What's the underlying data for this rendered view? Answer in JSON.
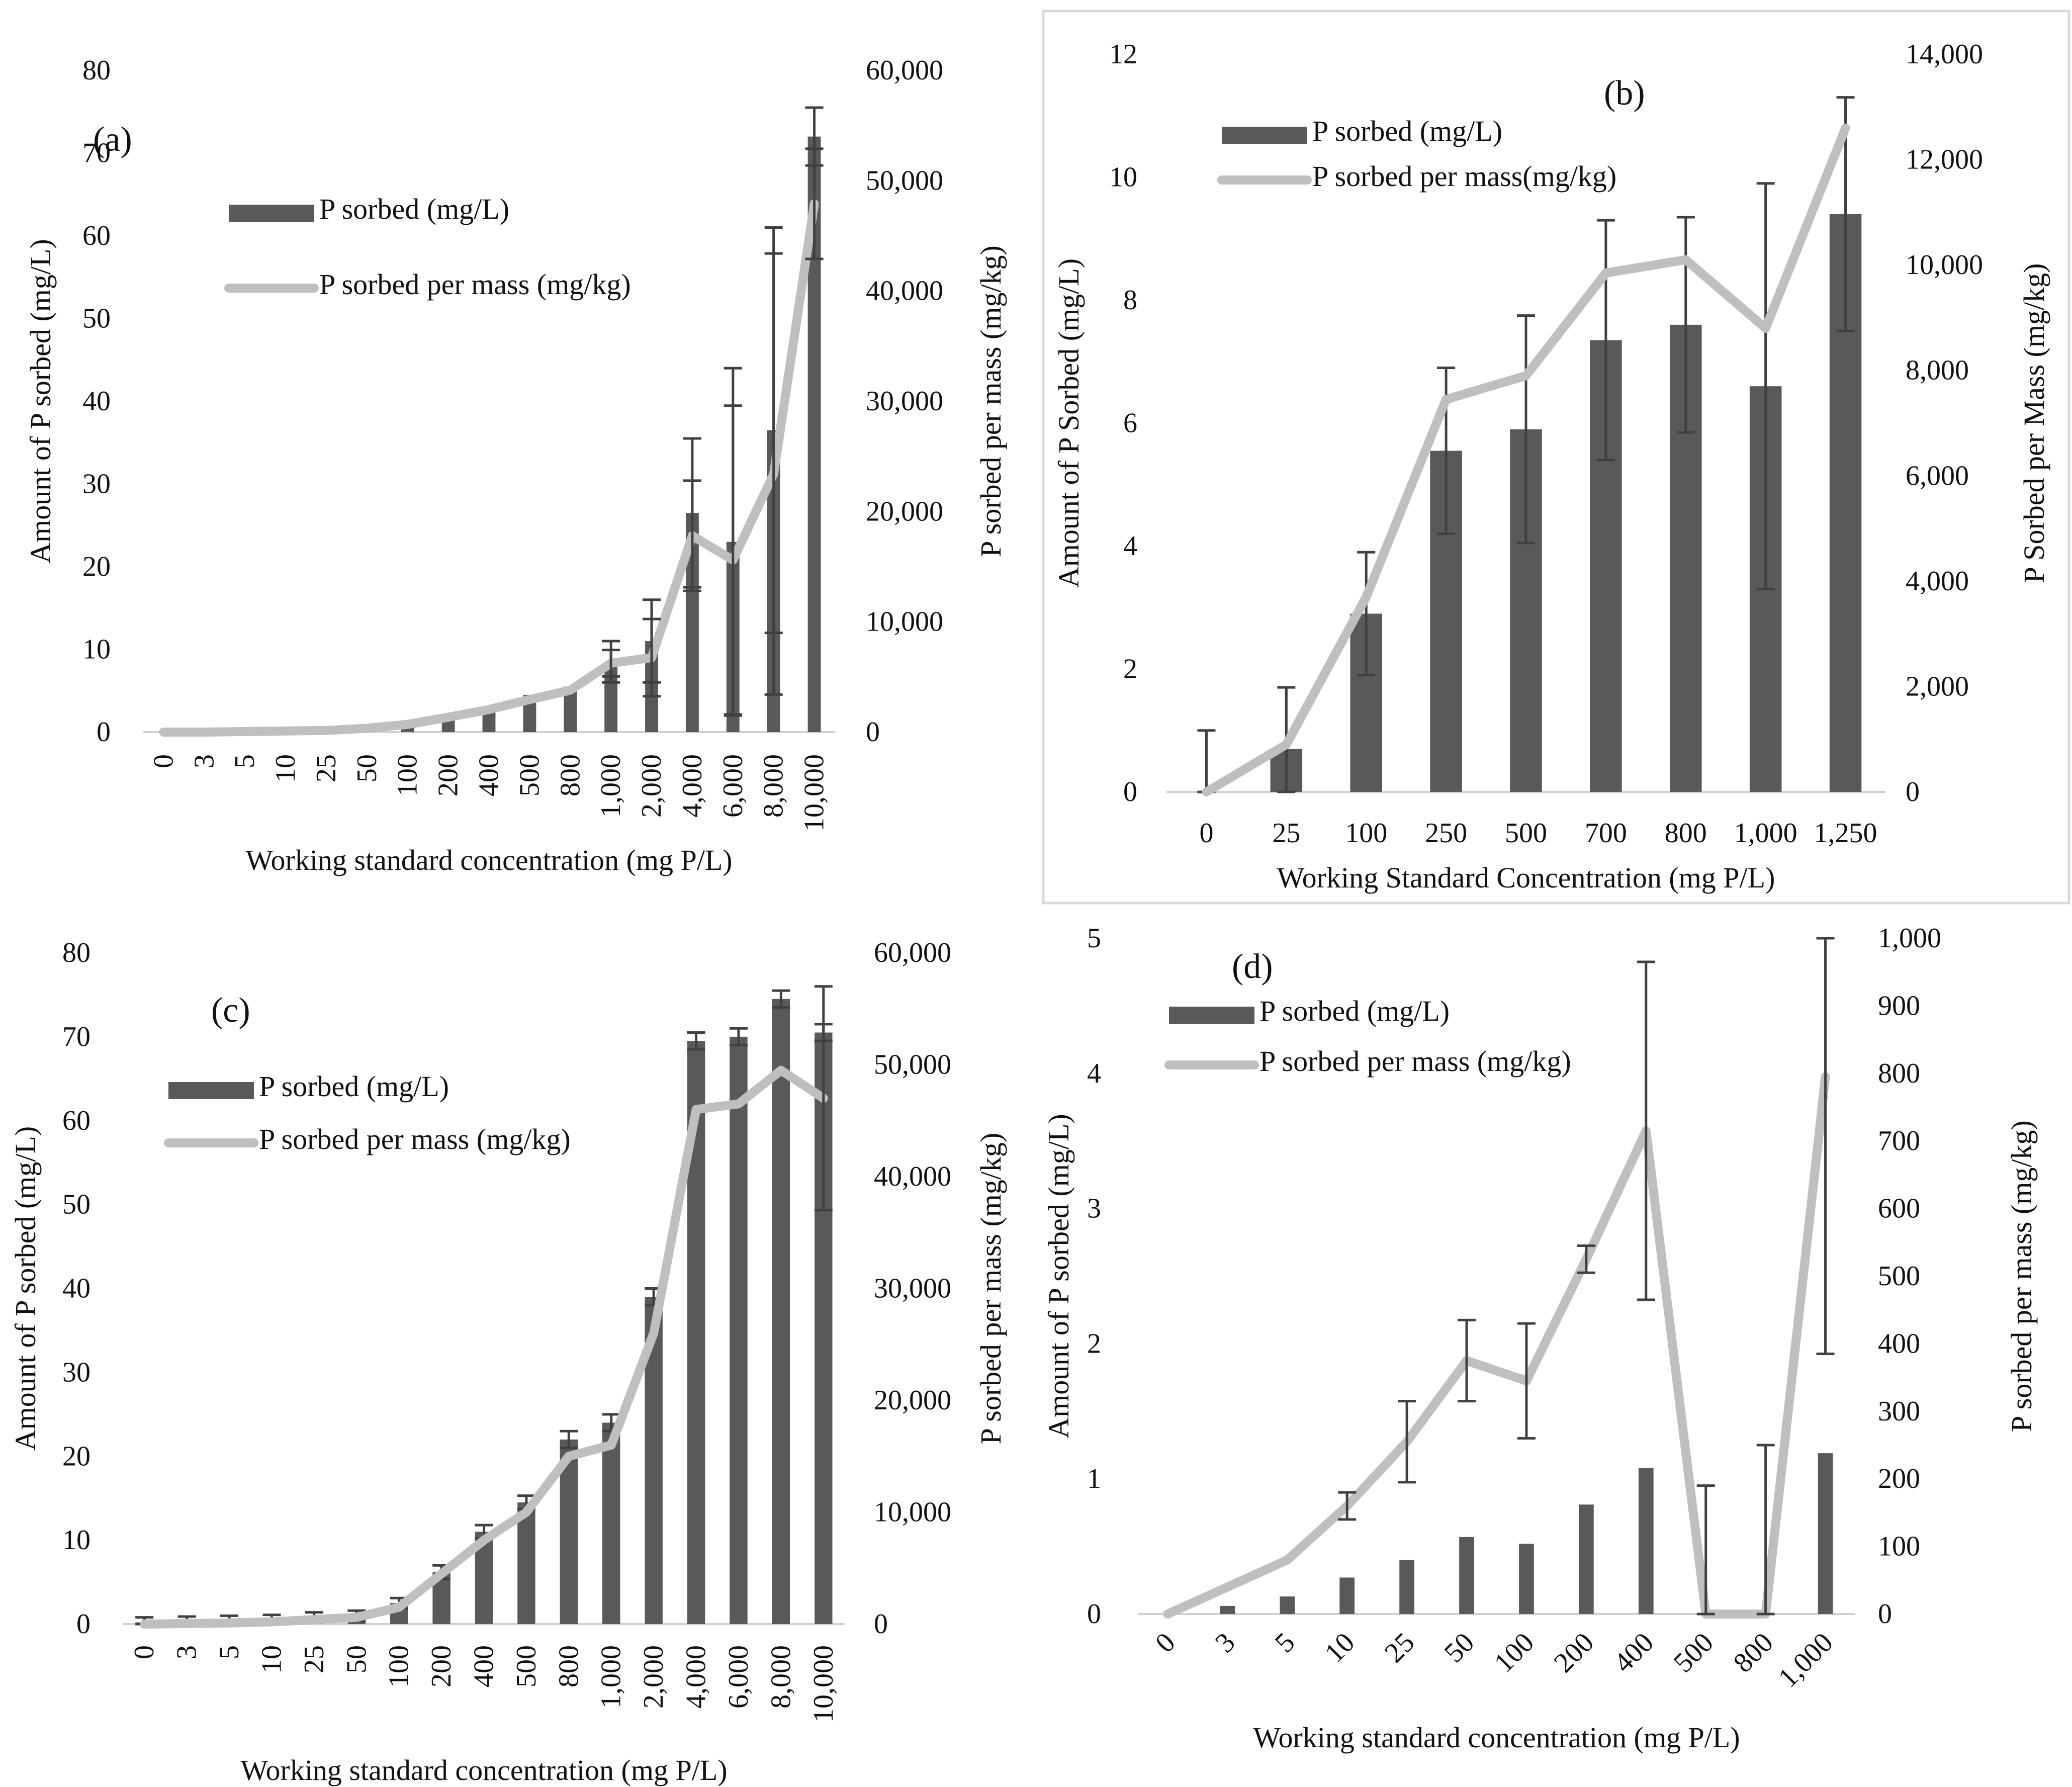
{
  "colors": {
    "bar": "#595959",
    "line": "#bfbfbf",
    "error": "#404040",
    "frame": "#d9d9d9"
  },
  "chart_data": [
    {
      "id": "a",
      "type": "bar+line",
      "panel_label": "(a)",
      "categories": [
        "0",
        "3",
        "5",
        "10",
        "25",
        "50",
        "100",
        "200",
        "400",
        "500",
        "800",
        "1,000",
        "2,000",
        "4,000",
        "6,000",
        "8,000",
        "10,000"
      ],
      "bar_series": {
        "name": "P sorbed (mg/L)",
        "values": [
          0,
          0,
          0.1,
          0.2,
          0.3,
          0.5,
          1,
          2,
          3,
          4.5,
          5.5,
          8.5,
          11,
          26.5,
          23,
          36.5,
          72
        ],
        "errors": [
          0,
          0,
          0,
          0,
          0,
          0,
          0,
          0,
          0,
          0,
          0,
          2.5,
          5,
          9,
          21,
          24.5,
          3.5
        ]
      },
      "line_series": {
        "name": "P sorbed per mass (mg/kg)",
        "values": [
          0,
          0,
          50,
          100,
          150,
          350,
          700,
          1350,
          2050,
          2950,
          3800,
          6250,
          6750,
          17800,
          15600,
          23400,
          47900
        ],
        "errors": [
          0,
          0,
          0,
          0,
          0,
          0,
          0,
          0,
          0,
          0,
          0,
          1200,
          3500,
          5000,
          14000,
          20000,
          5000
        ]
      },
      "xlabel": "Working standard concentration (mg P/L)",
      "ylabel_left": "Amount of P sorbed (mg/L)",
      "ylabel_right": "P sorbed per mass (mg/kg)",
      "ylim_left": [
        0,
        80
      ],
      "yticks_left": [
        "0",
        "10",
        "20",
        "30",
        "40",
        "50",
        "60",
        "70",
        "80"
      ],
      "ylim_right": [
        0,
        60000
      ],
      "yticks_right": [
        "0",
        "10,000",
        "20,000",
        "30,000",
        "40,000",
        "50,000",
        "60,000"
      ],
      "legend_position": "top-left"
    },
    {
      "id": "b",
      "type": "bar+line",
      "panel_label": "(b)",
      "categories": [
        "0",
        "25",
        "100",
        "250",
        "500",
        "700",
        "800",
        "1,000",
        "1,250"
      ],
      "bar_series": {
        "name": "P sorbed (mg/L)",
        "values": [
          0,
          0.7,
          2.9,
          5.55,
          5.9,
          7.35,
          7.6,
          6.6,
          9.4
        ],
        "errors": [
          1,
          1,
          1,
          1.35,
          1.85,
          1.95,
          1.75,
          3.3,
          1.9
        ]
      },
      "line_series": {
        "name": "P sorbed per mass(mg/kg)",
        "values": [
          0,
          900,
          3700,
          7450,
          7900,
          9850,
          10100,
          8800,
          12600
        ],
        "errors": [
          0,
          0,
          0,
          0,
          0,
          0,
          0,
          0,
          0
        ]
      },
      "xlabel": "Working Standard Concentration (mg P/L)",
      "ylabel_left": "Amount of P Sorbed (mg/L)",
      "ylabel_right": "P Sorbed per Mass (mg/kg)",
      "ylim_left": [
        0,
        12
      ],
      "yticks_left": [
        "0",
        "2",
        "4",
        "6",
        "8",
        "10",
        "12"
      ],
      "ylim_right": [
        0,
        14000
      ],
      "yticks_right": [
        "0",
        "2,000",
        "4,000",
        "6,000",
        "8,000",
        "10,000",
        "12,000",
        "14,000"
      ],
      "legend_position": "top-left"
    },
    {
      "id": "c",
      "type": "bar+line",
      "panel_label": "(c)",
      "categories": [
        "0",
        "3",
        "5",
        "10",
        "25",
        "50",
        "100",
        "200",
        "400",
        "500",
        "800",
        "1,000",
        "2,000",
        "4,000",
        "6,000",
        "8,000",
        "10,000"
      ],
      "bar_series": {
        "name": "P sorbed (mg/L)",
        "values": [
          0.2,
          0.3,
          0.4,
          0.5,
          0.8,
          1,
          2.5,
          6.2,
          11,
          14.5,
          22,
          24,
          39,
          69.5,
          70,
          74.5,
          70.5
        ],
        "errors": [
          0.6,
          0.6,
          0.6,
          0.6,
          0.6,
          0.6,
          0.6,
          0.8,
          0.8,
          0.8,
          1,
          1,
          1,
          1,
          1,
          1,
          1
        ]
      },
      "line_series": {
        "name": "P sorbed per mass (mg/kg)",
        "values": [
          0,
          50,
          100,
          200,
          400,
          600,
          1500,
          4500,
          7500,
          10000,
          15000,
          16000,
          26000,
          46000,
          46500,
          49500,
          47000
        ],
        "errors": [
          0,
          0,
          0,
          0,
          0,
          0,
          0,
          0,
          0,
          0,
          0,
          0,
          0,
          0,
          0,
          0,
          10000
        ]
      },
      "xlabel": "Working standard concentration (mg P/L)",
      "ylabel_left": "Amount of P sorbed (mg/L)",
      "ylabel_right": "P sorbed per mass (mg/kg)",
      "ylim_left": [
        0,
        80
      ],
      "yticks_left": [
        "0",
        "10",
        "20",
        "30",
        "40",
        "50",
        "60",
        "70",
        "80"
      ],
      "ylim_right": [
        0,
        60000
      ],
      "yticks_right": [
        "0",
        "10,000",
        "20,000",
        "30,000",
        "40,000",
        "50,000",
        "60,000"
      ],
      "legend_position": "top-left"
    },
    {
      "id": "d",
      "type": "bar+line",
      "panel_label": "(d)",
      "categories": [
        "0",
        "3",
        "5",
        "10",
        "25",
        "50",
        "100",
        "200",
        "400",
        "500",
        "800",
        "1,000"
      ],
      "bar_series": {
        "name": "P sorbed (mg/L)",
        "values": [
          0,
          0.06,
          0.13,
          0.27,
          0.4,
          0.57,
          0.52,
          0.81,
          1.08,
          0,
          0,
          1.19
        ],
        "errors": [
          0,
          0,
          0,
          0,
          0,
          0,
          0,
          0,
          0,
          0,
          0,
          0
        ]
      },
      "line_series": {
        "name": "P sorbed per mass (mg/kg)",
        "values": [
          0,
          40,
          80,
          160,
          255,
          375,
          345,
          525,
          715,
          0,
          0,
          795
        ],
        "errors": [
          0,
          0,
          0,
          20,
          60,
          60,
          85,
          20,
          250,
          190,
          250,
          410
        ]
      },
      "xlabel": "Working standard concentration (mg P/L)",
      "ylabel_left": "Amount of P sorbed  (mg/L)",
      "ylabel_right": "P sorbed per mass (mg/kg)",
      "ylim_left": [
        0,
        5
      ],
      "yticks_left": [
        "0",
        "1",
        "2",
        "3",
        "4",
        "5"
      ],
      "ylim_right": [
        0,
        1000
      ],
      "yticks_right": [
        "0",
        "100",
        "200",
        "300",
        "400",
        "500",
        "600",
        "700",
        "800",
        "900",
        "1,000"
      ],
      "legend_position": "top-left"
    }
  ]
}
